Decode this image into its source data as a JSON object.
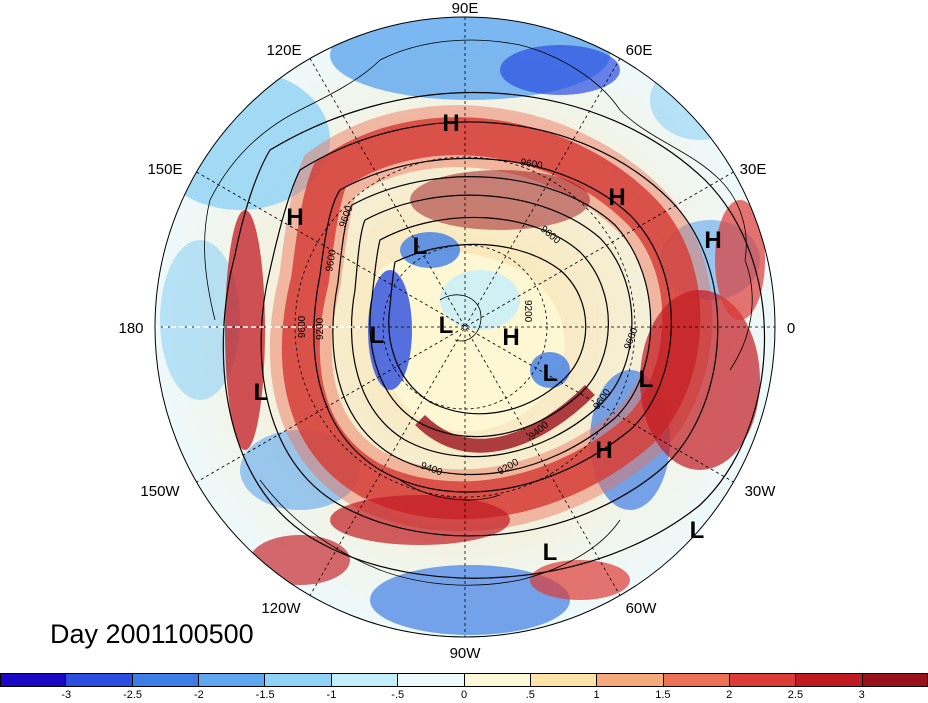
{
  "title": "Day 2001100500",
  "longitude_labels": [
    {
      "text": "90E"
    },
    {
      "text": "60E"
    },
    {
      "text": "120E"
    },
    {
      "text": "30E"
    },
    {
      "text": "150E"
    },
    {
      "text": "0"
    },
    {
      "text": "180"
    },
    {
      "text": "30W"
    },
    {
      "text": "150W"
    },
    {
      "text": "60W"
    },
    {
      "text": "120W"
    },
    {
      "text": "90W"
    }
  ],
  "pressure_markers": [
    "H",
    "H",
    "H",
    "H",
    "H",
    "H",
    "L",
    "L",
    "L",
    "L",
    "L",
    "L",
    "L",
    "L"
  ],
  "contour_labels": [
    "9200",
    "9600",
    "9600",
    "9600",
    "9600",
    "9200",
    "9600",
    "9400",
    "9200",
    "9600",
    "9600",
    "9400"
  ],
  "colorbar": {
    "colors": [
      "#1a08c4",
      "#2b4de0",
      "#3f7de6",
      "#5ea6ef",
      "#8fd2f5",
      "#c4eefb",
      "#eef9fb",
      "#fdf8d6",
      "#fde3a8",
      "#f6a97a",
      "#ec6f56",
      "#dd3b36",
      "#c21a22",
      "#98101a"
    ],
    "tick_labels": [
      "-3",
      "-2.5",
      "-2",
      "-1.5",
      "-1",
      "-.5",
      "0",
      ".5",
      "1",
      "1.5",
      "2",
      "2.5",
      "3"
    ]
  }
}
